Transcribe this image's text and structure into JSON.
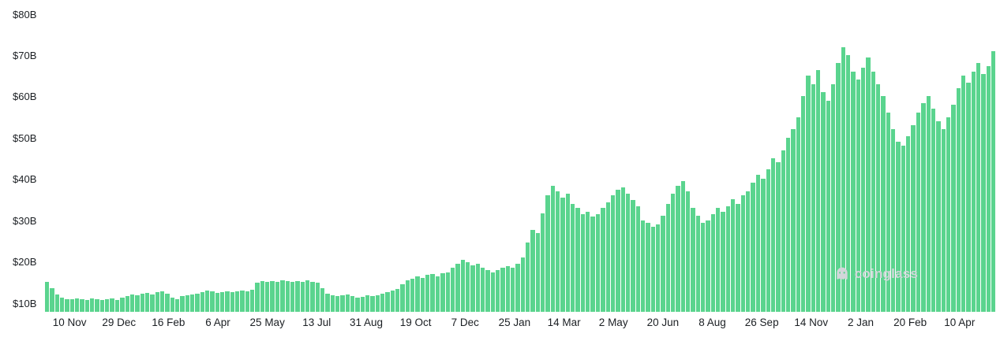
{
  "watermark": {
    "label": "coinglass"
  },
  "chart_data": {
    "type": "bar",
    "title": "",
    "xlabel": "",
    "ylabel": "",
    "unit": "billions USD",
    "legend": "none",
    "grid": "off",
    "bar_color": "#5ad48e",
    "axis_text_color": "#1b1f23",
    "ylim": [
      8,
      82
    ],
    "y_ticks": [
      {
        "value": 10,
        "label": "$10B"
      },
      {
        "value": 20,
        "label": "$20B"
      },
      {
        "value": 30,
        "label": "$30B"
      },
      {
        "value": 40,
        "label": "$40B"
      },
      {
        "value": 50,
        "label": "$50B"
      },
      {
        "value": 60,
        "label": "$60B"
      },
      {
        "value": 70,
        "label": "$70B"
      },
      {
        "value": 80,
        "label": "$80B"
      }
    ],
    "x_tick_labels": [
      "10 Nov",
      "29 Dec",
      "16 Feb",
      "6 Apr",
      "25 May",
      "13 Jul",
      "31 Aug",
      "19 Oct",
      "7 Dec",
      "25 Jan",
      "14 Mar",
      "2 May",
      "20 Jun",
      "8 Aug",
      "26 Sep",
      "14 Nov",
      "2 Jan",
      "20 Feb",
      "10 Apr"
    ],
    "values": [
      15.2,
      13.8,
      12.3,
      11.4,
      11.1,
      11.0,
      11.3,
      11.1,
      10.9,
      11.2,
      11.0,
      10.8,
      11.0,
      11.2,
      10.9,
      11.4,
      11.9,
      12.3,
      12.0,
      12.4,
      12.6,
      12.2,
      12.8,
      13.0,
      12.4,
      11.5,
      11.0,
      11.8,
      12.0,
      12.2,
      12.4,
      12.8,
      13.2,
      12.9,
      12.6,
      12.8,
      13.0,
      12.7,
      12.9,
      13.1,
      13.0,
      13.4,
      15.1,
      15.4,
      15.2,
      15.5,
      15.3,
      15.6,
      15.4,
      15.2,
      15.5,
      15.3,
      15.6,
      15.2,
      15.0,
      13.8,
      12.4,
      12.0,
      11.8,
      12.1,
      12.2,
      11.8,
      11.5,
      11.7,
      12.0,
      11.8,
      12.1,
      12.4,
      12.7,
      13.1,
      13.6,
      14.6,
      15.6,
      16.1,
      16.6,
      16.2,
      16.9,
      17.1,
      16.6,
      17.3,
      17.6,
      18.6,
      19.6,
      20.6,
      20.1,
      19.2,
      19.6,
      18.6,
      18.1,
      17.6,
      18.1,
      18.6,
      19.1,
      18.6,
      19.6,
      21.2,
      24.8,
      27.8,
      27.0,
      31.8,
      36.2,
      38.6,
      37.2,
      35.6,
      36.6,
      34.2,
      33.1,
      31.6,
      32.2,
      31.1,
      31.6,
      33.2,
      34.6,
      36.2,
      37.6,
      38.2,
      36.6,
      35.1,
      33.6,
      30.2,
      29.6,
      28.6,
      29.2,
      31.2,
      34.2,
      36.6,
      38.6,
      39.6,
      37.1,
      33.2,
      31.2,
      29.6,
      30.2,
      31.6,
      33.2,
      32.2,
      33.6,
      35.2,
      34.2,
      36.2,
      37.2,
      39.2,
      41.2,
      40.2,
      42.6,
      45.2,
      44.2,
      47.2,
      50.2,
      52.2,
      55.2,
      60.2,
      65.2,
      63.2,
      66.6,
      61.2,
      59.2,
      63.2,
      68.2,
      72.0,
      70.2,
      66.2,
      64.2,
      67.2,
      69.6,
      66.2,
      63.2,
      60.2,
      56.2,
      52.2,
      49.2,
      48.2,
      50.6,
      53.2,
      56.2,
      58.6,
      60.2,
      57.2,
      54.2,
      52.2,
      55.2,
      58.2,
      62.2,
      65.2,
      63.6,
      66.2,
      68.2,
      65.6,
      67.6,
      71.2
    ]
  }
}
